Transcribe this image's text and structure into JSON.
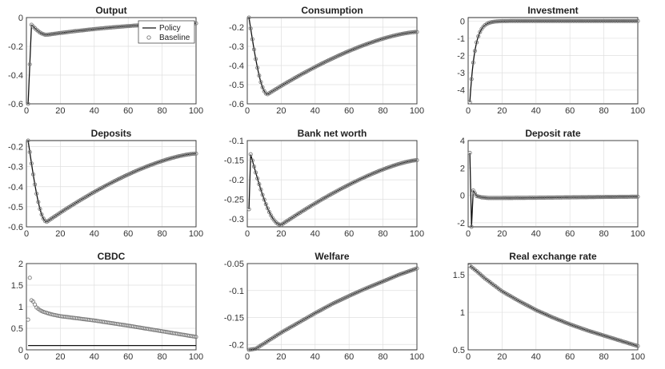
{
  "chart_data": [
    {
      "title": "Output",
      "type": "line",
      "xlim": [
        0,
        100
      ],
      "ylim": [
        -0.6,
        0
      ],
      "xticks": [
        0,
        20,
        40,
        60,
        80,
        100
      ],
      "yticks": [
        -0.6,
        -0.4,
        -0.2,
        0
      ],
      "ytick_labels": [
        "-0.6",
        "-0.4",
        "-0.2",
        "0"
      ],
      "series": [
        {
          "name": "Policy",
          "type": "line",
          "shape": "pulse_decay",
          "start": -0.6,
          "peak_x": 3,
          "peak": -0.05,
          "trough_x": 12,
          "trough": -0.12,
          "end": -0.04
        },
        {
          "name": "Baseline",
          "type": "markers",
          "shape": "pulse_decay",
          "start": -0.6,
          "peak_x": 3,
          "peak": -0.05,
          "trough_x": 12,
          "trough": -0.12,
          "end": -0.04
        }
      ],
      "legend": {
        "entries": [
          "Policy",
          "Baseline"
        ],
        "position": "top-right"
      }
    },
    {
      "title": "Consumption",
      "type": "line",
      "xlim": [
        0,
        100
      ],
      "ylim": [
        -0.6,
        -0.15
      ],
      "xticks": [
        0,
        20,
        40,
        60,
        80,
        100
      ],
      "yticks": [
        -0.6,
        -0.5,
        -0.4,
        -0.3,
        -0.2
      ],
      "ytick_labels": [
        "-0.6",
        "-0.5",
        "-0.4",
        "-0.3",
        "-0.2"
      ],
      "series": [
        {
          "name": "Policy",
          "type": "line",
          "shape": "hump",
          "start": -0.15,
          "trough_x": 12,
          "trough": -0.55,
          "end": -0.225
        },
        {
          "name": "Baseline",
          "type": "markers",
          "shape": "hump",
          "start": -0.15,
          "trough_x": 12,
          "trough": -0.55,
          "end": -0.225
        }
      ]
    },
    {
      "title": "Investment",
      "type": "line",
      "xlim": [
        0,
        100
      ],
      "ylim": [
        -4.8,
        0.2
      ],
      "xticks": [
        0,
        20,
        40,
        60,
        80,
        100
      ],
      "yticks": [
        -4,
        -3,
        -2,
        -1,
        0
      ],
      "ytick_labels": [
        "-4",
        "-3",
        "-2",
        "-1",
        "0"
      ],
      "series": [
        {
          "name": "Policy",
          "type": "line",
          "shape": "exp",
          "start": -4.7,
          "tau": 3,
          "end": 0
        },
        {
          "name": "Baseline",
          "type": "markers",
          "shape": "exp",
          "start": -4.7,
          "tau": 3,
          "end": 0
        }
      ]
    },
    {
      "title": "Deposits",
      "type": "line",
      "xlim": [
        0,
        100
      ],
      "ylim": [
        -0.6,
        -0.17
      ],
      "xticks": [
        0,
        20,
        40,
        60,
        80,
        100
      ],
      "yticks": [
        -0.6,
        -0.5,
        -0.4,
        -0.3,
        -0.2
      ],
      "ytick_labels": [
        "-0.6",
        "-0.5",
        "-0.4",
        "-0.3",
        "-0.2"
      ],
      "series": [
        {
          "name": "Policy",
          "type": "line",
          "shape": "hump",
          "start": -0.17,
          "trough_x": 12,
          "trough": -0.575,
          "end": -0.235
        },
        {
          "name": "Baseline",
          "type": "markers",
          "shape": "hump",
          "start": -0.17,
          "trough_x": 12,
          "trough": -0.575,
          "end": -0.235
        }
      ]
    },
    {
      "title": "Bank net worth",
      "type": "line",
      "xlim": [
        0,
        100
      ],
      "ylim": [
        -0.32,
        -0.1
      ],
      "xticks": [
        0,
        20,
        40,
        60,
        80,
        100
      ],
      "yticks": [
        -0.3,
        -0.25,
        -0.2,
        -0.15,
        -0.1
      ],
      "ytick_labels": [
        "-0.3",
        "-0.25",
        "-0.2",
        "-0.15",
        "-0.1"
      ],
      "series": [
        {
          "name": "Policy",
          "type": "line",
          "shape": "pulse_hump",
          "start": -0.275,
          "peak_x": 2,
          "peak": -0.135,
          "trough_x": 20,
          "trough": -0.315,
          "end": -0.15
        },
        {
          "name": "Baseline",
          "type": "markers",
          "shape": "pulse_hump",
          "start": -0.275,
          "peak_x": 2,
          "peak": -0.135,
          "trough_x": 20,
          "trough": -0.315,
          "end": -0.15
        }
      ]
    },
    {
      "title": "Deposit rate",
      "type": "line",
      "xlim": [
        0,
        100
      ],
      "ylim": [
        -2.3,
        4
      ],
      "xticks": [
        0,
        20,
        40,
        60,
        80,
        100
      ],
      "yticks": [
        -2,
        0,
        2,
        4
      ],
      "ytick_labels": [
        "-2",
        "0",
        "2",
        "4"
      ],
      "series": [
        {
          "name": "Policy",
          "type": "line",
          "shape": "points",
          "points": [
            [
              1,
              3.1
            ],
            [
              2,
              -2.3
            ],
            [
              3,
              0.35
            ],
            [
              5,
              -0.05
            ],
            [
              8,
              -0.15
            ],
            [
              12,
              -0.2
            ],
            [
              20,
              -0.2
            ],
            [
              40,
              -0.18
            ],
            [
              60,
              -0.15
            ],
            [
              80,
              -0.12
            ],
            [
              100,
              -0.1
            ]
          ]
        },
        {
          "name": "Baseline",
          "type": "markers",
          "shape": "points",
          "points": [
            [
              1,
              3.1
            ],
            [
              2,
              -2.3
            ],
            [
              3,
              0.35
            ],
            [
              5,
              -0.05
            ],
            [
              8,
              -0.15
            ],
            [
              12,
              -0.2
            ],
            [
              20,
              -0.2
            ],
            [
              40,
              -0.18
            ],
            [
              60,
              -0.15
            ],
            [
              80,
              -0.12
            ],
            [
              100,
              -0.1
            ]
          ]
        }
      ]
    },
    {
      "title": "CBDC",
      "type": "line",
      "xlim": [
        0,
        100
      ],
      "ylim": [
        0,
        2
      ],
      "xticks": [
        0,
        20,
        40,
        60,
        80,
        100
      ],
      "yticks": [
        0,
        0.5,
        1,
        1.5,
        2
      ],
      "ytick_labels": [
        "0",
        "0.5",
        "1",
        "1.5",
        "2"
      ],
      "series": [
        {
          "name": "Policy",
          "type": "line",
          "shape": "points",
          "points": [
            [
              1,
              0.1
            ],
            [
              100,
              0.1
            ]
          ]
        },
        {
          "name": "Baseline",
          "type": "markers",
          "shape": "points",
          "points": [
            [
              1,
              0.7
            ],
            [
              2,
              1.67
            ],
            [
              3,
              1.15
            ],
            [
              4,
              1.12
            ],
            [
              5,
              1.05
            ],
            [
              6,
              0.98
            ],
            [
              8,
              0.92
            ],
            [
              10,
              0.88
            ],
            [
              15,
              0.82
            ],
            [
              20,
              0.78
            ],
            [
              40,
              0.68
            ],
            [
              60,
              0.56
            ],
            [
              80,
              0.43
            ],
            [
              100,
              0.3
            ]
          ]
        }
      ]
    },
    {
      "title": "Welfare",
      "type": "line",
      "xlim": [
        0,
        100
      ],
      "ylim": [
        -0.21,
        -0.05
      ],
      "xticks": [
        0,
        20,
        40,
        60,
        80,
        100
      ],
      "yticks": [
        -0.2,
        -0.15,
        -0.1,
        -0.05
      ],
      "ytick_labels": [
        "-0.2",
        "-0.15",
        "-0.1",
        "-0.05"
      ],
      "series": [
        {
          "name": "Policy",
          "type": "line",
          "shape": "points",
          "points": [
            [
              1,
              -0.21
            ],
            [
              5,
              -0.208
            ],
            [
              10,
              -0.198
            ],
            [
              20,
              -0.178
            ],
            [
              30,
              -0.16
            ],
            [
              40,
              -0.142
            ],
            [
              50,
              -0.125
            ],
            [
              60,
              -0.11
            ],
            [
              70,
              -0.096
            ],
            [
              80,
              -0.083
            ],
            [
              90,
              -0.07
            ],
            [
              100,
              -0.059
            ]
          ]
        },
        {
          "name": "Baseline",
          "type": "markers",
          "shape": "points",
          "points": [
            [
              1,
              -0.21
            ],
            [
              5,
              -0.208
            ],
            [
              10,
              -0.198
            ],
            [
              20,
              -0.178
            ],
            [
              30,
              -0.16
            ],
            [
              40,
              -0.142
            ],
            [
              50,
              -0.125
            ],
            [
              60,
              -0.11
            ],
            [
              70,
              -0.096
            ],
            [
              80,
              -0.083
            ],
            [
              90,
              -0.07
            ],
            [
              100,
              -0.059
            ]
          ]
        }
      ]
    },
    {
      "title": "Real exchange rate",
      "type": "line",
      "xlim": [
        0,
        100
      ],
      "ylim": [
        0.5,
        1.65
      ],
      "xticks": [
        0,
        20,
        40,
        60,
        80,
        100
      ],
      "yticks": [
        0.5,
        1,
        1.5
      ],
      "ytick_labels": [
        "0.5",
        "1",
        "1.5"
      ],
      "series": [
        {
          "name": "Policy",
          "type": "line",
          "shape": "points",
          "points": [
            [
              1,
              1.62
            ],
            [
              5,
              1.55
            ],
            [
              10,
              1.45
            ],
            [
              20,
              1.28
            ],
            [
              30,
              1.15
            ],
            [
              40,
              1.03
            ],
            [
              50,
              0.93
            ],
            [
              60,
              0.84
            ],
            [
              70,
              0.76
            ],
            [
              80,
              0.69
            ],
            [
              90,
              0.62
            ],
            [
              100,
              0.55
            ]
          ]
        },
        {
          "name": "Baseline",
          "type": "markers",
          "shape": "points",
          "points": [
            [
              1,
              1.62
            ],
            [
              5,
              1.55
            ],
            [
              10,
              1.45
            ],
            [
              20,
              1.28
            ],
            [
              30,
              1.15
            ],
            [
              40,
              1.03
            ],
            [
              50,
              0.93
            ],
            [
              60,
              0.84
            ],
            [
              70,
              0.76
            ],
            [
              80,
              0.69
            ],
            [
              90,
              0.62
            ],
            [
              100,
              0.55
            ]
          ]
        }
      ]
    }
  ]
}
